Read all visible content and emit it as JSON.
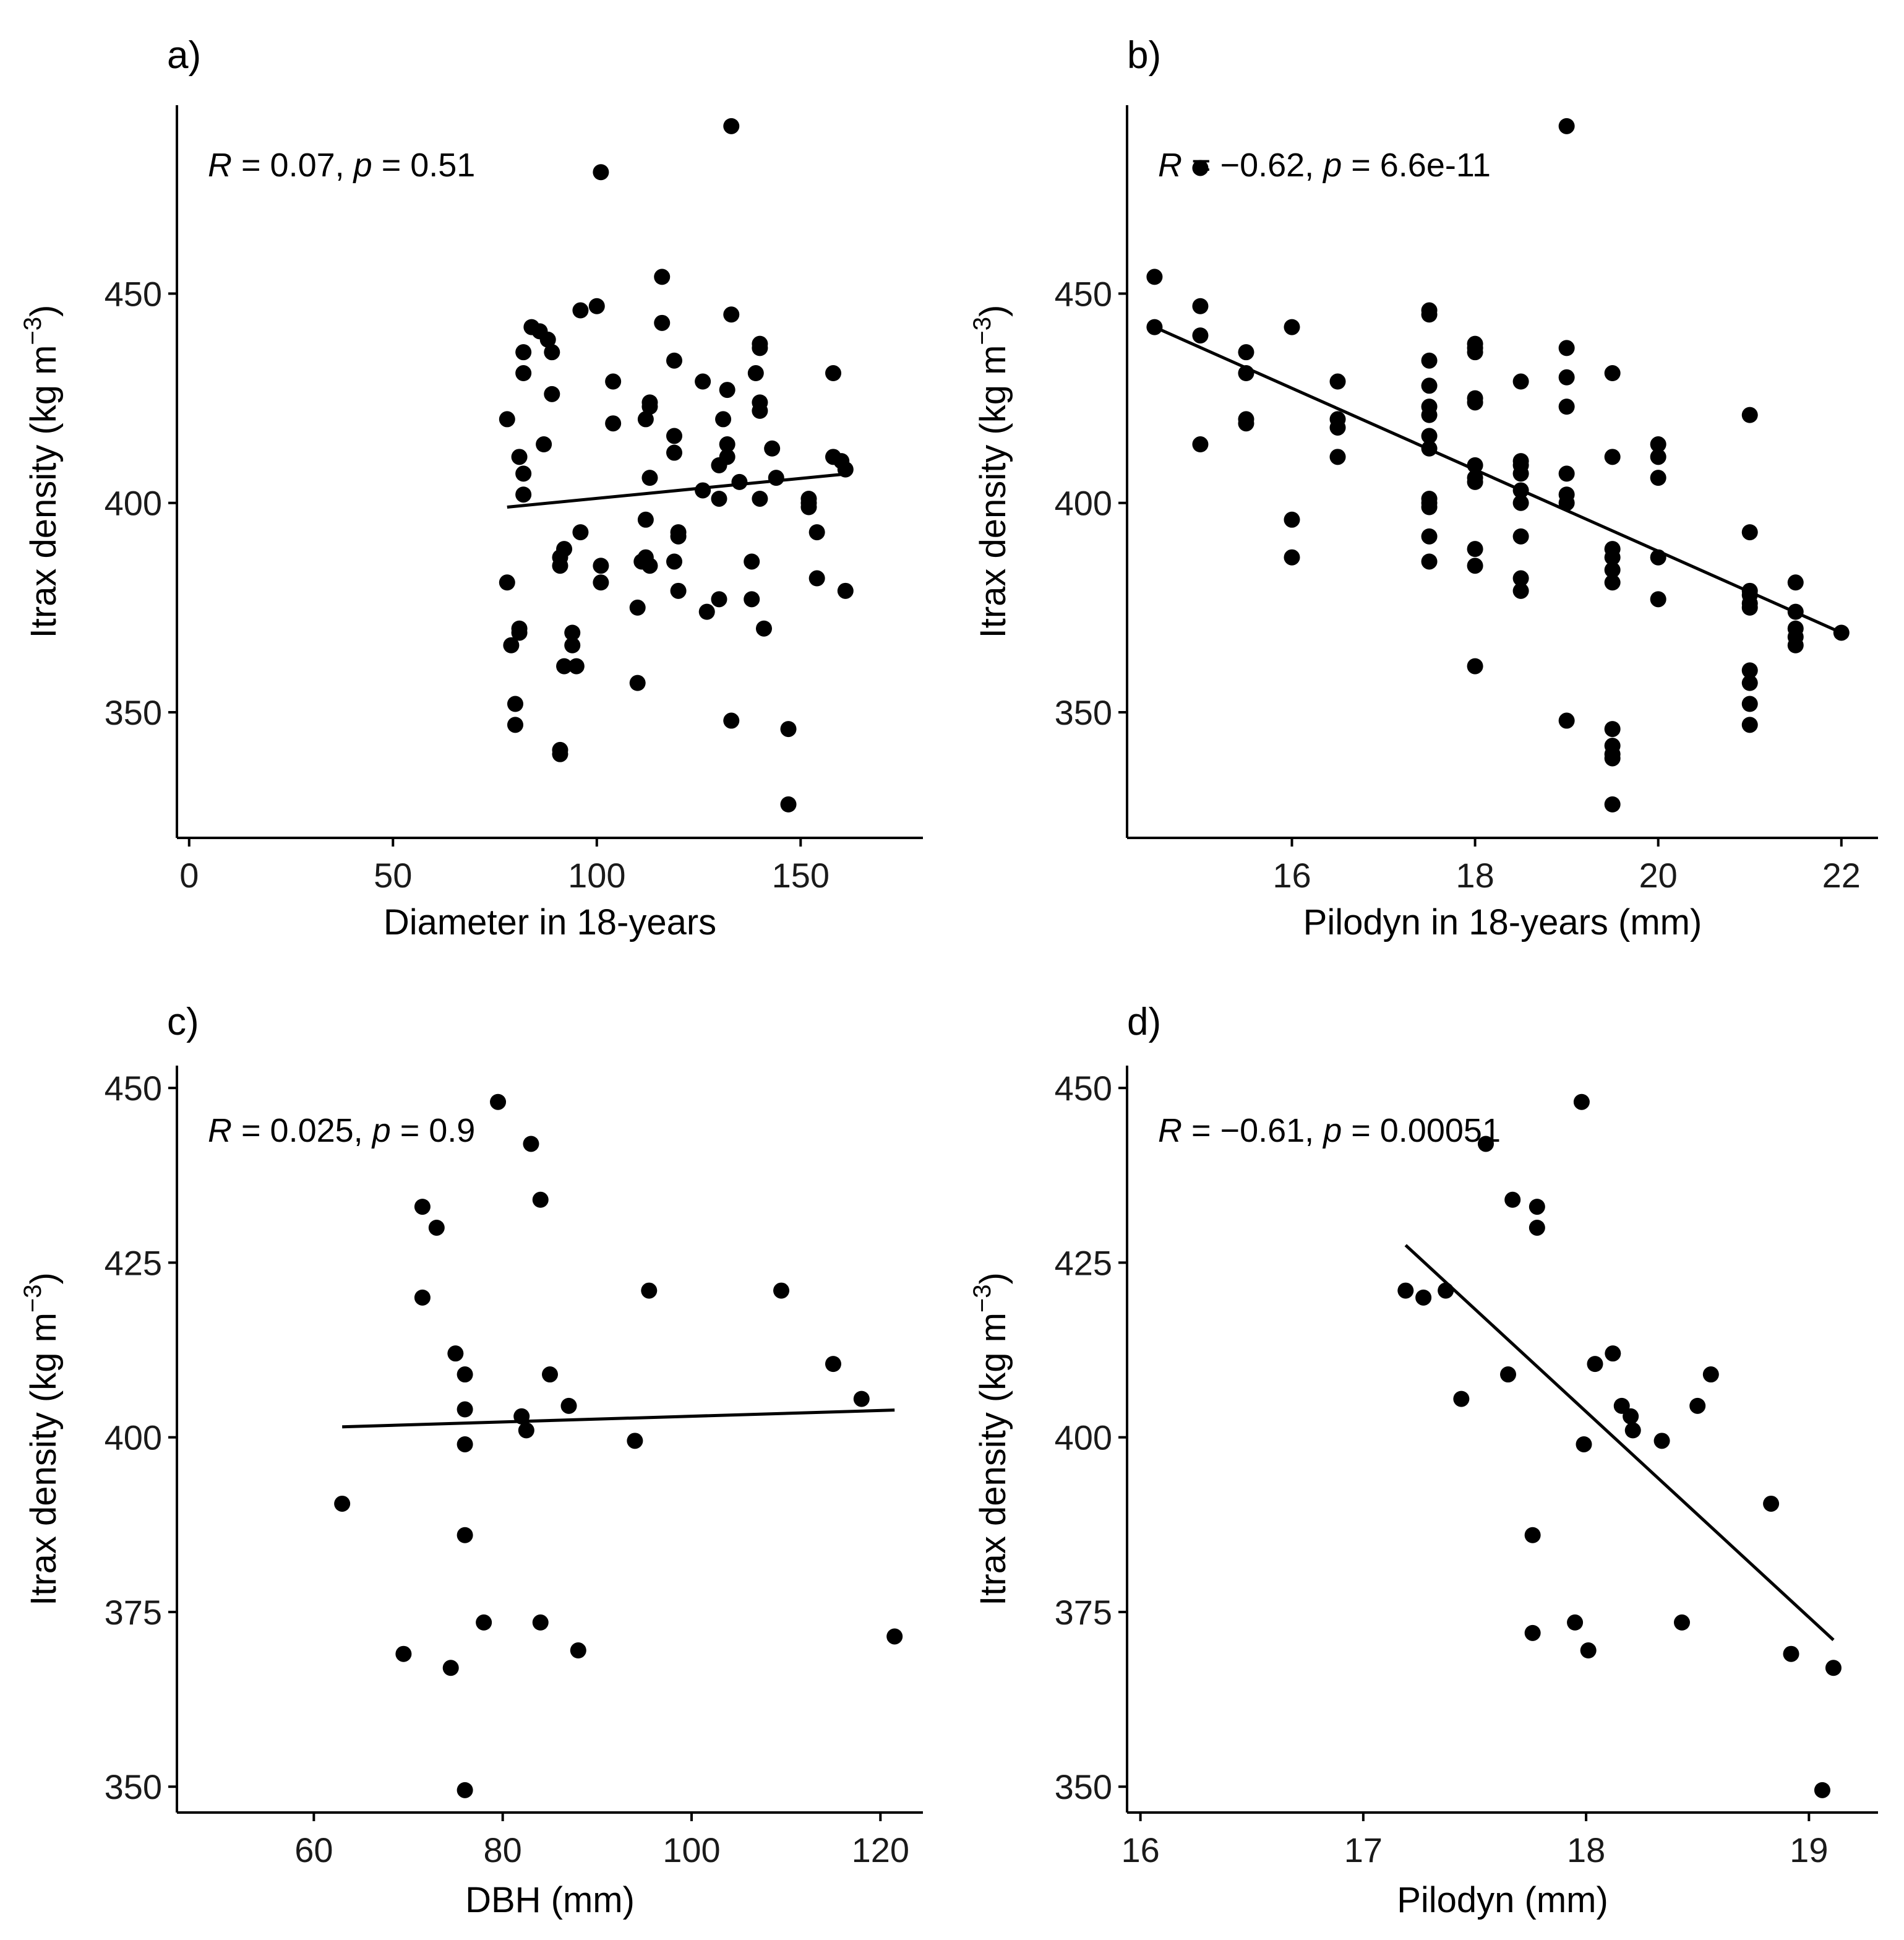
{
  "chart_data": [
    {
      "type": "scatter",
      "panel_label": "a)",
      "xlabel": "Diameter in 18-years",
      "ylabel": "Itrax density (kg m",
      "ylabel_sup": "−3",
      "ylabel_close": ")",
      "xlim": [
        -3,
        180
      ],
      "ylim": [
        320,
        495
      ],
      "xticks": [
        0,
        50,
        100,
        150
      ],
      "yticks": [
        350,
        400,
        450
      ],
      "annotation": {
        "r_label": "R",
        "r_text": " = 0.07, ",
        "p_label": "p",
        "p_text": " = 0.51"
      },
      "fit": {
        "x": [
          78,
          162
        ],
        "y": [
          399,
          407
        ]
      },
      "points": [
        [
          78,
          420
        ],
        [
          78,
          381
        ],
        [
          79,
          366
        ],
        [
          80,
          352
        ],
        [
          80,
          347
        ],
        [
          81,
          369
        ],
        [
          81,
          370
        ],
        [
          81,
          411
        ],
        [
          82,
          407
        ],
        [
          82,
          402
        ],
        [
          82,
          431
        ],
        [
          82,
          436
        ],
        [
          84,
          442
        ],
        [
          86,
          441
        ],
        [
          87,
          414
        ],
        [
          88,
          439
        ],
        [
          89,
          426
        ],
        [
          89,
          436
        ],
        [
          91,
          385
        ],
        [
          91,
          387
        ],
        [
          91,
          340
        ],
        [
          91,
          341
        ],
        [
          92,
          389
        ],
        [
          92,
          361
        ],
        [
          94,
          369
        ],
        [
          94,
          366
        ],
        [
          95,
          361
        ],
        [
          96,
          393
        ],
        [
          96,
          446
        ],
        [
          100,
          447
        ],
        [
          101,
          479
        ],
        [
          101,
          385
        ],
        [
          101,
          381
        ],
        [
          104,
          429
        ],
        [
          104,
          419
        ],
        [
          110,
          357
        ],
        [
          110,
          375
        ],
        [
          111,
          386
        ],
        [
          112,
          387
        ],
        [
          112,
          396
        ],
        [
          112,
          420
        ],
        [
          113,
          423
        ],
        [
          113,
          424
        ],
        [
          113,
          385
        ],
        [
          113,
          406
        ],
        [
          116,
          454
        ],
        [
          116,
          443
        ],
        [
          119,
          434
        ],
        [
          119,
          416
        ],
        [
          119,
          412
        ],
        [
          119,
          386
        ],
        [
          120,
          393
        ],
        [
          120,
          392
        ],
        [
          120,
          379
        ],
        [
          126,
          429
        ],
        [
          126,
          403
        ],
        [
          127,
          374
        ],
        [
          130,
          401
        ],
        [
          130,
          377
        ],
        [
          130,
          409
        ],
        [
          131,
          420
        ],
        [
          132,
          411
        ],
        [
          132,
          427
        ],
        [
          132,
          414
        ],
        [
          133,
          348
        ],
        [
          133,
          445
        ],
        [
          133,
          490
        ],
        [
          135,
          405
        ],
        [
          138,
          386
        ],
        [
          138,
          377
        ],
        [
          139,
          431
        ],
        [
          140,
          438
        ],
        [
          140,
          437
        ],
        [
          140,
          424
        ],
        [
          140,
          422
        ],
        [
          140,
          401
        ],
        [
          141,
          370
        ],
        [
          143,
          413
        ],
        [
          144,
          406
        ],
        [
          147,
          346
        ],
        [
          147,
          328
        ],
        [
          152,
          401
        ],
        [
          152,
          399
        ],
        [
          152,
          400
        ],
        [
          154,
          393
        ],
        [
          154,
          382
        ],
        [
          158,
          411
        ],
        [
          158,
          431
        ],
        [
          160,
          410
        ],
        [
          161,
          408
        ],
        [
          161,
          379
        ]
      ]
    },
    {
      "type": "scatter",
      "panel_label": "b)",
      "xlabel": "Pilodyn in 18-years (mm)",
      "ylabel": "Itrax density (kg m",
      "ylabel_sup": "−3",
      "ylabel_close": ")",
      "xlim": [
        14.2,
        22.4
      ],
      "ylim": [
        320,
        495
      ],
      "xticks": [
        16,
        18,
        20,
        22
      ],
      "yticks": [
        350,
        400,
        450
      ],
      "annotation": {
        "r_label": "R",
        "r_text": " = −0.62, ",
        "p_label": "p",
        "p_text": " = 6.6e-11"
      },
      "fit": {
        "x": [
          14.5,
          22
        ],
        "y": [
          442,
          369
        ]
      },
      "points": [
        [
          14.5,
          454
        ],
        [
          14.5,
          442
        ],
        [
          15,
          480
        ],
        [
          15,
          447
        ],
        [
          15,
          440
        ],
        [
          15,
          414
        ],
        [
          15.5,
          436
        ],
        [
          15.5,
          431
        ],
        [
          15.5,
          420
        ],
        [
          15.5,
          419
        ],
        [
          16,
          442
        ],
        [
          16,
          396
        ],
        [
          16,
          387
        ],
        [
          16.5,
          429
        ],
        [
          16.5,
          420
        ],
        [
          16.5,
          418
        ],
        [
          16.5,
          411
        ],
        [
          17.5,
          446
        ],
        [
          17.5,
          445
        ],
        [
          17.5,
          434
        ],
        [
          17.5,
          428
        ],
        [
          17.5,
          423
        ],
        [
          17.5,
          421
        ],
        [
          17.5,
          416
        ],
        [
          17.5,
          413
        ],
        [
          17.5,
          401
        ],
        [
          17.5,
          400
        ],
        [
          17.5,
          399
        ],
        [
          17.5,
          392
        ],
        [
          17.5,
          386
        ],
        [
          18,
          438
        ],
        [
          18,
          437
        ],
        [
          18,
          436
        ],
        [
          18,
          425
        ],
        [
          18,
          424
        ],
        [
          18,
          409
        ],
        [
          18,
          406
        ],
        [
          18,
          405
        ],
        [
          18,
          389
        ],
        [
          18,
          385
        ],
        [
          18,
          361
        ],
        [
          18.5,
          429
        ],
        [
          18.5,
          410
        ],
        [
          18.5,
          409
        ],
        [
          18.5,
          407
        ],
        [
          18.5,
          403
        ],
        [
          18.5,
          400
        ],
        [
          18.5,
          392
        ],
        [
          18.5,
          382
        ],
        [
          18.5,
          379
        ],
        [
          19,
          490
        ],
        [
          19,
          437
        ],
        [
          19,
          430
        ],
        [
          19,
          423
        ],
        [
          19,
          407
        ],
        [
          19,
          402
        ],
        [
          19,
          400
        ],
        [
          19,
          348
        ],
        [
          19.5,
          431
        ],
        [
          19.5,
          411
        ],
        [
          19.5,
          389
        ],
        [
          19.5,
          387
        ],
        [
          19.5,
          384
        ],
        [
          19.5,
          381
        ],
        [
          19.5,
          346
        ],
        [
          19.5,
          342
        ],
        [
          19.5,
          340
        ],
        [
          19.5,
          339
        ],
        [
          19.5,
          328
        ],
        [
          20,
          414
        ],
        [
          20,
          411
        ],
        [
          20,
          406
        ],
        [
          20,
          387
        ],
        [
          20,
          377
        ],
        [
          21,
          421
        ],
        [
          21,
          393
        ],
        [
          21,
          379
        ],
        [
          21,
          378
        ],
        [
          21,
          376
        ],
        [
          21,
          375
        ],
        [
          21,
          360
        ],
        [
          21,
          357
        ],
        [
          21,
          352
        ],
        [
          21,
          347
        ],
        [
          21.5,
          381
        ],
        [
          21.5,
          374
        ],
        [
          21.5,
          370
        ],
        [
          21.5,
          368
        ],
        [
          21.5,
          366
        ],
        [
          22,
          369
        ]
      ]
    },
    {
      "type": "scatter",
      "panel_label": "c)",
      "xlabel": "DBH (mm)",
      "ylabel": "Itrax density (kg m",
      "ylabel_sup": "−3",
      "ylabel_close": ")",
      "xlim": [
        45.5,
        124.5
      ],
      "ylim": [
        346.3,
        453.2
      ],
      "xticks": [
        60,
        80,
        100,
        120
      ],
      "yticks": [
        350,
        375,
        400,
        425,
        450
      ],
      "annotation": {
        "r_label": "R",
        "r_text": " = 0.025, ",
        "p_label": "p",
        "p_text": " = 0.9"
      },
      "fit": {
        "x": [
          63,
          121.5
        ],
        "y": [
          401.5,
          403.9
        ]
      },
      "points": [
        [
          63,
          390.5
        ],
        [
          69.5,
          369
        ],
        [
          71.5,
          433
        ],
        [
          71.5,
          420
        ],
        [
          73,
          430
        ],
        [
          74.5,
          367
        ],
        [
          75,
          412
        ],
        [
          76,
          409
        ],
        [
          76,
          404
        ],
        [
          76,
          399
        ],
        [
          76,
          386
        ],
        [
          76,
          349.5
        ],
        [
          78,
          373.5
        ],
        [
          79.5,
          448
        ],
        [
          82,
          403
        ],
        [
          82.5,
          401
        ],
        [
          83,
          442
        ],
        [
          84,
          373.5
        ],
        [
          84,
          434
        ],
        [
          85,
          409
        ],
        [
          87,
          404.5
        ],
        [
          88,
          369.5
        ],
        [
          94,
          399.5
        ],
        [
          95.5,
          421
        ],
        [
          109.5,
          421
        ],
        [
          115,
          410.5
        ],
        [
          118,
          405.5
        ],
        [
          121.5,
          371.5
        ]
      ]
    },
    {
      "type": "scatter",
      "panel_label": "d)",
      "xlabel": "Pilodyn (mm)",
      "ylabel": "Itrax density (kg m",
      "ylabel_sup": "−3",
      "ylabel_close": ")",
      "xlim": [
        15.94,
        19.31
      ],
      "ylim": [
        346.3,
        453.2
      ],
      "xticks": [
        16,
        17,
        18,
        19
      ],
      "yticks": [
        350,
        375,
        400,
        425,
        450
      ],
      "annotation": {
        "r_label": "R",
        "r_text": " = −0.61, ",
        "p_label": "p",
        "p_text": " = 0.00051"
      },
      "fit": {
        "x": [
          17.19,
          19.11
        ],
        "y": [
          427.5,
          371
        ]
      },
      "points": [
        [
          17.19,
          421
        ],
        [
          17.27,
          420
        ],
        [
          17.37,
          421
        ],
        [
          17.44,
          405.5
        ],
        [
          17.55,
          442
        ],
        [
          17.65,
          409
        ],
        [
          17.67,
          434
        ],
        [
          17.76,
          372
        ],
        [
          17.76,
          386
        ],
        [
          17.78,
          433
        ],
        [
          17.78,
          430
        ],
        [
          17.95,
          373.5
        ],
        [
          17.98,
          448
        ],
        [
          17.99,
          399
        ],
        [
          18.01,
          369.5
        ],
        [
          18.04,
          410.5
        ],
        [
          18.12,
          412
        ],
        [
          18.16,
          404.5
        ],
        [
          18.2,
          403
        ],
        [
          18.21,
          401
        ],
        [
          18.34,
          399.5
        ],
        [
          18.43,
          373.5
        ],
        [
          18.5,
          404.5
        ],
        [
          18.56,
          409
        ],
        [
          18.83,
          390.5
        ],
        [
          18.92,
          369
        ],
        [
          19.06,
          349.5
        ],
        [
          19.11,
          367
        ]
      ]
    }
  ]
}
